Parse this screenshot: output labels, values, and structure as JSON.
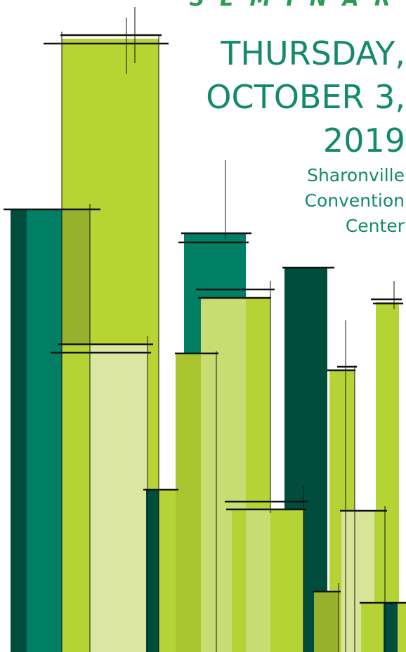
{
  "header": {
    "word": "SEMINAR"
  },
  "date": {
    "lines": [
      "THURSDAY,",
      "OCTOBER 3,",
      "2019"
    ]
  },
  "venue": {
    "lines": [
      "Sharonville",
      "Convention",
      "Center"
    ]
  }
}
